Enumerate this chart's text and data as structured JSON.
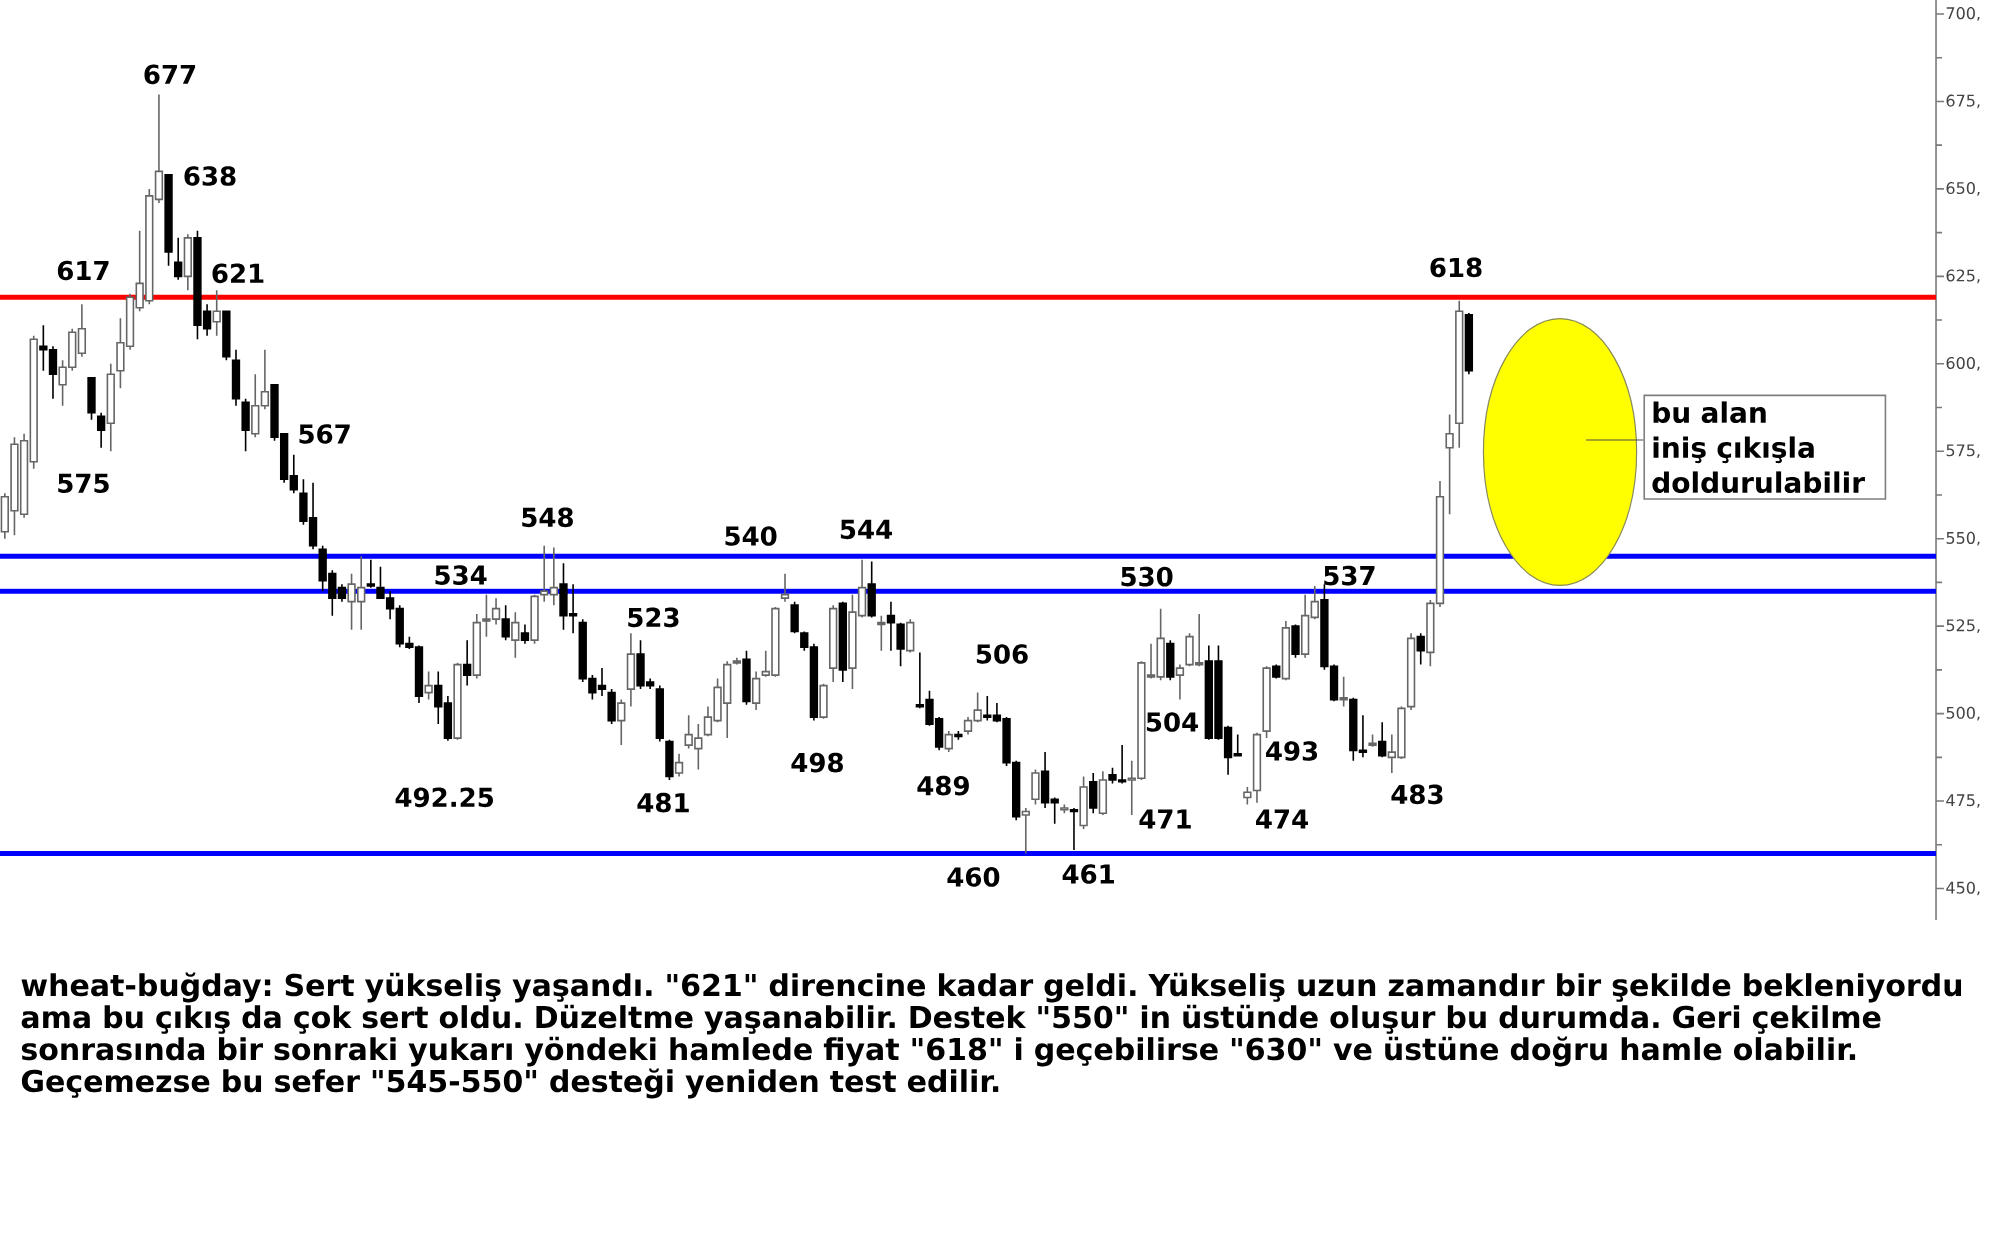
{
  "chart_data": {
    "type": "candlestick",
    "categories": [
      null,
      null,
      null,
      null,
      null,
      null,
      null,
      null,
      null,
      null,
      null,
      null,
      null,
      null,
      null,
      null,
      null,
      null,
      null,
      null,
      null,
      null,
      null,
      null,
      null,
      null,
      null,
      null,
      null,
      null,
      null,
      null,
      null,
      null,
      null,
      null,
      null,
      null,
      null,
      null,
      null,
      null,
      null,
      null,
      null,
      null,
      null,
      null,
      null,
      null,
      null,
      null,
      null,
      null,
      null,
      null,
      null,
      null,
      null,
      null,
      null,
      null,
      null,
      null,
      null,
      null,
      null,
      null,
      null,
      null,
      null,
      null,
      null,
      null,
      null,
      null,
      null,
      null,
      null,
      null,
      null,
      null,
      null,
      null,
      null,
      null,
      null,
      null,
      null,
      null,
      null,
      null,
      null,
      null,
      null,
      null,
      null,
      null,
      null,
      null,
      null,
      null,
      null,
      null,
      null,
      null,
      null,
      null,
      null,
      null,
      null,
      null,
      null,
      null,
      null,
      null,
      null,
      null,
      null,
      null,
      null,
      null,
      null,
      null,
      null,
      null,
      null,
      null,
      null,
      null,
      null,
      null,
      null,
      null,
      null,
      null,
      null,
      null,
      null,
      null,
      null,
      null,
      null,
      null,
      null,
      null,
      null,
      null,
      null,
      null,
      null,
      null,
      null,
      null,
      null,
      null,
      null,
      null,
      null,
      null,
      null,
      null,
      null,
      null,
      null,
      null,
      null,
      null,
      null,
      null,
      null,
      null,
      null,
      null,
      null,
      null,
      null,
      null,
      null,
      null,
      null,
      null,
      null,
      null,
      null,
      null,
      null,
      null,
      null,
      null,
      null,
      null,
      null,
      null,
      null,
      null,
      null,
      null,
      null,
      null,
      null
    ],
    "ohlc": [
      [
        552,
        563,
        550,
        562
      ],
      [
        558,
        579,
        551,
        577
      ],
      [
        557,
        580,
        556,
        578
      ],
      [
        572,
        608,
        570,
        607
      ],
      [
        605,
        611,
        598,
        604
      ],
      [
        604,
        605,
        590,
        597
      ],
      [
        594,
        601,
        588,
        599
      ],
      [
        599,
        610,
        598,
        609
      ],
      [
        603,
        617,
        602,
        610
      ],
      [
        596,
        596,
        584,
        586
      ],
      [
        585,
        586,
        576,
        581
      ],
      [
        583,
        600,
        575,
        597
      ],
      [
        598,
        613,
        593,
        606
      ],
      [
        605,
        620,
        604,
        619
      ],
      [
        616,
        638,
        615,
        623
      ],
      [
        618,
        650,
        617,
        648
      ],
      [
        647,
        677,
        646,
        655
      ],
      [
        654,
        654,
        628,
        632
      ],
      [
        629,
        636,
        624,
        625
      ],
      [
        625,
        637,
        621,
        636
      ],
      [
        636,
        638,
        607,
        611
      ],
      [
        615,
        617,
        608,
        610
      ],
      [
        612,
        621,
        608,
        615
      ],
      [
        615,
        615,
        601,
        602
      ],
      [
        601,
        604,
        588,
        590
      ],
      [
        589,
        590,
        575,
        581
      ],
      [
        580,
        597,
        579,
        588
      ],
      [
        588,
        604,
        587,
        592
      ],
      [
        594,
        594,
        578,
        579
      ],
      [
        580,
        580,
        566,
        567
      ],
      [
        568,
        574,
        563,
        564
      ],
      [
        563,
        567,
        554,
        555
      ],
      [
        556,
        566,
        547,
        548
      ],
      [
        547,
        548,
        535,
        538
      ],
      [
        540,
        541,
        528,
        533
      ],
      [
        536,
        537,
        532,
        533
      ],
      [
        532,
        540,
        524,
        537
      ],
      [
        532,
        545,
        524,
        536
      ],
      [
        537,
        544,
        536,
        536.5
      ],
      [
        536,
        542,
        533,
        533
      ],
      [
        533,
        535,
        527,
        530
      ],
      [
        530,
        531,
        519,
        520
      ],
      [
        520,
        522,
        518.5,
        519
      ],
      [
        519,
        519.5,
        503,
        505
      ],
      [
        506,
        512,
        504,
        508
      ],
      [
        508,
        512,
        497,
        502
      ],
      [
        503,
        505,
        492.25,
        493
      ],
      [
        493,
        514.5,
        492.5,
        514
      ],
      [
        514,
        521,
        508,
        511
      ],
      [
        511,
        528.5,
        510,
        526
      ],
      [
        526.5,
        534,
        522,
        527
      ],
      [
        527,
        533,
        525.5,
        530
      ],
      [
        527,
        531,
        521,
        522
      ],
      [
        521,
        529,
        516,
        526
      ],
      [
        523,
        525.5,
        520,
        521
      ],
      [
        521,
        534,
        520,
        533.5
      ],
      [
        534,
        548,
        532,
        535
      ],
      [
        534,
        547.5,
        531,
        536
      ],
      [
        537,
        543,
        524,
        528
      ],
      [
        528.5,
        537,
        523,
        528
      ],
      [
        526,
        527,
        509,
        510
      ],
      [
        510,
        511,
        504,
        506
      ],
      [
        508,
        513,
        505,
        507
      ],
      [
        506,
        507,
        497,
        498
      ],
      [
        498,
        504,
        491,
        503
      ],
      [
        507,
        523,
        502,
        517
      ],
      [
        517,
        521,
        507,
        508
      ],
      [
        509,
        510,
        507,
        508
      ],
      [
        507,
        508,
        492,
        493
      ],
      [
        492,
        492.5,
        481,
        482
      ],
      [
        483,
        488.5,
        482,
        486
      ],
      [
        491,
        499.5,
        490,
        494
      ],
      [
        490,
        497,
        484,
        493
      ],
      [
        494,
        502,
        493.5,
        499
      ],
      [
        498,
        510,
        497.5,
        507.5
      ],
      [
        503,
        515,
        493,
        514
      ],
      [
        514.5,
        516,
        514,
        515
      ],
      [
        515.5,
        518,
        502.5,
        503.5
      ],
      [
        503,
        512,
        501,
        510
      ],
      [
        511,
        518,
        510.5,
        512
      ],
      [
        511,
        530.5,
        510.5,
        530
      ],
      [
        533,
        540,
        532,
        534
      ],
      [
        531,
        532,
        523,
        523.5
      ],
      [
        523,
        523.5,
        518,
        519
      ],
      [
        519,
        520,
        498,
        499
      ],
      [
        499,
        508.5,
        498.5,
        508
      ],
      [
        513,
        531,
        509,
        530
      ],
      [
        531.5,
        532,
        509,
        512.5
      ],
      [
        513,
        534,
        507,
        529
      ],
      [
        528,
        544,
        527.5,
        536
      ],
      [
        537,
        543.5,
        527.5,
        528
      ],
      [
        525.5,
        528,
        518,
        526
      ],
      [
        528,
        532,
        518,
        526
      ],
      [
        525.5,
        526,
        513.5,
        518.5
      ],
      [
        518,
        527,
        517.5,
        526
      ],
      [
        502.5,
        517.5,
        501.5,
        502
      ],
      [
        504,
        506.5,
        496.5,
        497
      ],
      [
        498.5,
        499,
        489.5,
        490.5
      ],
      [
        490,
        495,
        489,
        494
      ],
      [
        494,
        495,
        492.5,
        493.5
      ],
      [
        495,
        499,
        494,
        498
      ],
      [
        498,
        506,
        497.5,
        501
      ],
      [
        499.5,
        505,
        498,
        499
      ],
      [
        499.5,
        503,
        497.5,
        498
      ],
      [
        498.5,
        499,
        485,
        486
      ],
      [
        486,
        486.5,
        469.5,
        470.5
      ],
      [
        471,
        473,
        460,
        472
      ],
      [
        475.5,
        484,
        474,
        483
      ],
      [
        483.5,
        489,
        473,
        474.5
      ],
      [
        475.5,
        476,
        468.5,
        474.5
      ],
      [
        472.5,
        474,
        471.5,
        473
      ],
      [
        472.5,
        473,
        461,
        472
      ],
      [
        468,
        482,
        467,
        479
      ],
      [
        480.5,
        483,
        471.5,
        473
      ],
      [
        471.5,
        483.5,
        471,
        481
      ],
      [
        482.5,
        484.5,
        480,
        481
      ],
      [
        481,
        491,
        480,
        480.5
      ],
      [
        481,
        486.5,
        471,
        481.5
      ],
      [
        481.5,
        515,
        481,
        514.5
      ],
      [
        510.5,
        520,
        510,
        511
      ],
      [
        510.5,
        530,
        509.5,
        521.5
      ],
      [
        520,
        521,
        509.5,
        510.5
      ],
      [
        511,
        514,
        504,
        513
      ],
      [
        514,
        523,
        513.5,
        522
      ],
      [
        514,
        528.5,
        513.5,
        514.5
      ],
      [
        515,
        519.5,
        492.5,
        493
      ],
      [
        515,
        519.5,
        492.5,
        493
      ],
      [
        496,
        496.5,
        482.5,
        487.5
      ],
      [
        488.5,
        494,
        488,
        488
      ],
      [
        476,
        479,
        474,
        477.5
      ],
      [
        478,
        494.5,
        474.5,
        494
      ],
      [
        495,
        513.5,
        493,
        513
      ],
      [
        513.5,
        514,
        510,
        510.5
      ],
      [
        510,
        526.5,
        509.5,
        524.5
      ],
      [
        525,
        525.5,
        516,
        517
      ],
      [
        517,
        534,
        516,
        528
      ],
      [
        527.5,
        536.5,
        527,
        532
      ],
      [
        532.5,
        537,
        512.5,
        513.5
      ],
      [
        513.5,
        514,
        503.5,
        504
      ],
      [
        504,
        510.5,
        502,
        504.5
      ],
      [
        504,
        504.5,
        486.5,
        489.5
      ],
      [
        489.5,
        499.5,
        487.5,
        489
      ],
      [
        491,
        494,
        490.5,
        491.5
      ],
      [
        492,
        497.5,
        487.5,
        488
      ],
      [
        487.5,
        494,
        483,
        489
      ],
      [
        487.5,
        502,
        487,
        501.5
      ],
      [
        502,
        523,
        501,
        521.5
      ],
      [
        522,
        523,
        514,
        518
      ],
      [
        517.5,
        532.5,
        513.5,
        531.5
      ],
      [
        531.5,
        566.5,
        530.5,
        562
      ],
      [
        576,
        585.5,
        557,
        580
      ],
      [
        583,
        618,
        576,
        615
      ],
      [
        614,
        614.5,
        597,
        598
      ],
      null,
      null,
      null,
      null,
      null,
      null,
      null,
      null,
      null,
      null,
      null,
      null,
      null,
      null,
      null,
      null,
      null,
      null,
      null,
      null,
      null,
      null,
      null,
      null,
      null,
      null,
      null,
      null,
      null,
      null,
      null,
      null,
      null,
      null,
      null,
      null,
      null,
      null,
      null,
      null,
      null,
      null,
      null,
      null,
      null,
      null,
      null,
      null
    ],
    "ylim": [
      441,
      704
    ],
    "yticks": [
      {
        "value": 450,
        "label": "450,"
      },
      {
        "value": 462.5,
        "label": null
      },
      {
        "value": 475,
        "label": "475,"
      },
      {
        "value": 487.5,
        "label": null
      },
      {
        "value": 500,
        "label": "500,"
      },
      {
        "value": 512.5,
        "label": null
      },
      {
        "value": 525,
        "label": "525,"
      },
      {
        "value": 537.5,
        "label": null
      },
      {
        "value": 550,
        "label": "550,"
      },
      {
        "value": 562.5,
        "label": null
      },
      {
        "value": 575,
        "label": "575,"
      },
      {
        "value": 587.5,
        "label": null
      },
      {
        "value": 600,
        "label": "600,"
      },
      {
        "value": 612.5,
        "label": null
      },
      {
        "value": 625,
        "label": "625,"
      },
      {
        "value": 637.5,
        "label": null
      },
      {
        "value": 650,
        "label": "650,"
      },
      {
        "value": 662.5,
        "label": null
      },
      {
        "value": 675,
        "label": "675,"
      },
      {
        "value": 687.5,
        "label": null
      },
      {
        "value": 700,
        "label": "700,"
      }
    ],
    "tick_labels": "y",
    "ref_lines": [
      {
        "axis": "y",
        "value": 619,
        "color": "#ff0000"
      },
      {
        "axis": "y",
        "value": 545,
        "color": "#0000ff"
      },
      {
        "axis": "y",
        "value": 535,
        "color": "#0000ff"
      },
      {
        "axis": "y",
        "value": 460,
        "color": "#0000ff"
      }
    ],
    "annotations": [
      {
        "text": "617",
        "y": 617
      },
      "575",
      "677",
      "638",
      {
        "text": "621",
        "y": 621
      },
      "567",
      {
        "text": "492.25",
        "y": 492.25
      },
      {
        "text": "534",
        "y": 534
      },
      {
        "text": "548",
        "y": 548
      },
      "523",
      {
        "text": "481",
        "y": 481
      },
      "540",
      {
        "text": "498",
        "y": 498
      },
      {
        "text": "544",
        "y": 544
      },
      {
        "text": "489",
        "y": 489
      },
      "506",
      {
        "text": "460",
        "y": 460
      },
      {
        "text": "461",
        "y": 461
      },
      "530",
      "471",
      {
        "text": "504",
        "y": 504
      },
      "474",
      "493",
      {
        "text": "537",
        "y": 537
      },
      "483",
      {
        "text": "618",
        "y": 618
      },
      "bu alan iniş çıkışla doldurulabilir",
      "wheat-buğday: Sert yükseliş yaşandı. \"621\" direncine kadar geldi. Yükseliş uzun zamandır bir şekilde bekleniyordu ama bu çıkış da çok sert oldu. Düzeltme yaşanabilir. Destek \"550\" in üstünde oluşur bu durumda. Geri çekilme sonrasında bir sonraki yukarı yöndeki hamlede fiyat \"618\" i geçebilirse \"630\" ve üstüne doğru hamle olabilir. Geçemezse bu sefer \"545-550\" desteği yeniden test edilir."
    ]
  }
}
